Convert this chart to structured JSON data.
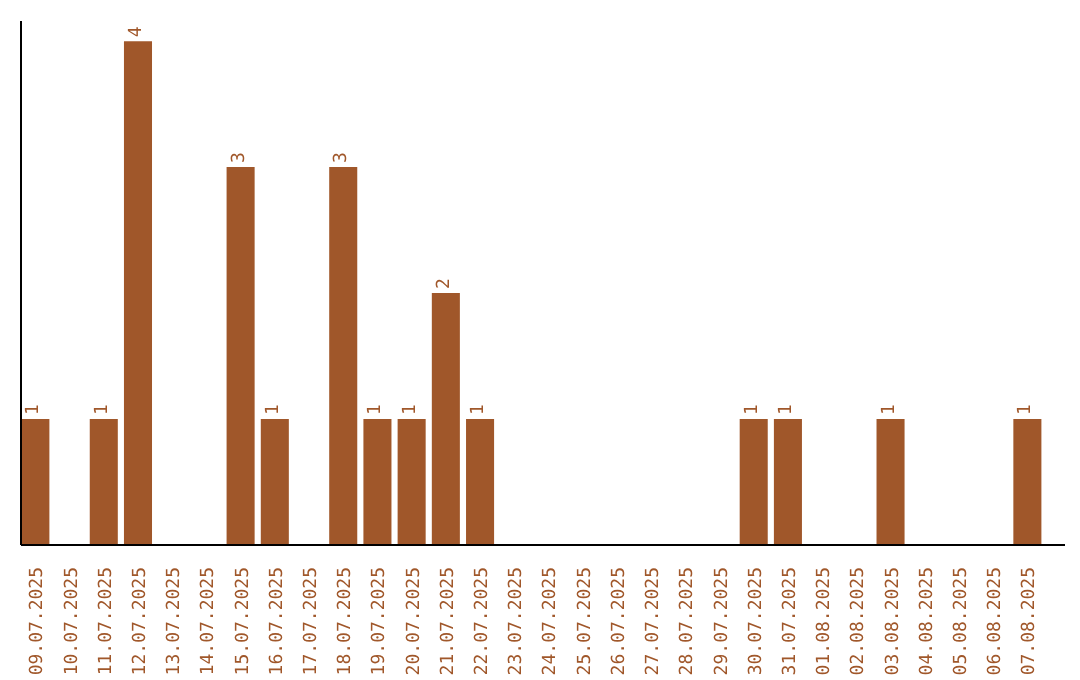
{
  "chart_data": {
    "type": "bar",
    "categories": [
      "09.07.2025",
      "10.07.2025",
      "11.07.2025",
      "12.07.2025",
      "13.07.2025",
      "14.07.2025",
      "15.07.2025",
      "16.07.2025",
      "17.07.2025",
      "18.07.2025",
      "19.07.2025",
      "20.07.2025",
      "21.07.2025",
      "22.07.2025",
      "23.07.2025",
      "24.07.2025",
      "25.07.2025",
      "26.07.2025",
      "27.07.2025",
      "28.07.2025",
      "29.07.2025",
      "30.07.2025",
      "31.07.2025",
      "01.08.2025",
      "02.08.2025",
      "03.08.2025",
      "04.08.2025",
      "05.08.2025",
      "06.08.2025",
      "07.08.2025"
    ],
    "values": [
      1,
      0,
      1,
      4,
      0,
      0,
      3,
      1,
      0,
      3,
      1,
      1,
      2,
      1,
      0,
      0,
      0,
      0,
      0,
      0,
      0,
      1,
      1,
      0,
      0,
      1,
      0,
      0,
      0,
      1
    ],
    "value_labels": [
      "1",
      null,
      "1",
      "4",
      null,
      null,
      "3",
      "1",
      null,
      "3",
      "1",
      "1",
      "2",
      "1",
      null,
      null,
      null,
      null,
      null,
      null,
      null,
      "1",
      "1",
      null,
      null,
      "1",
      null,
      null,
      null,
      "1"
    ],
    "color": "#a0572a",
    "grid": false
  }
}
